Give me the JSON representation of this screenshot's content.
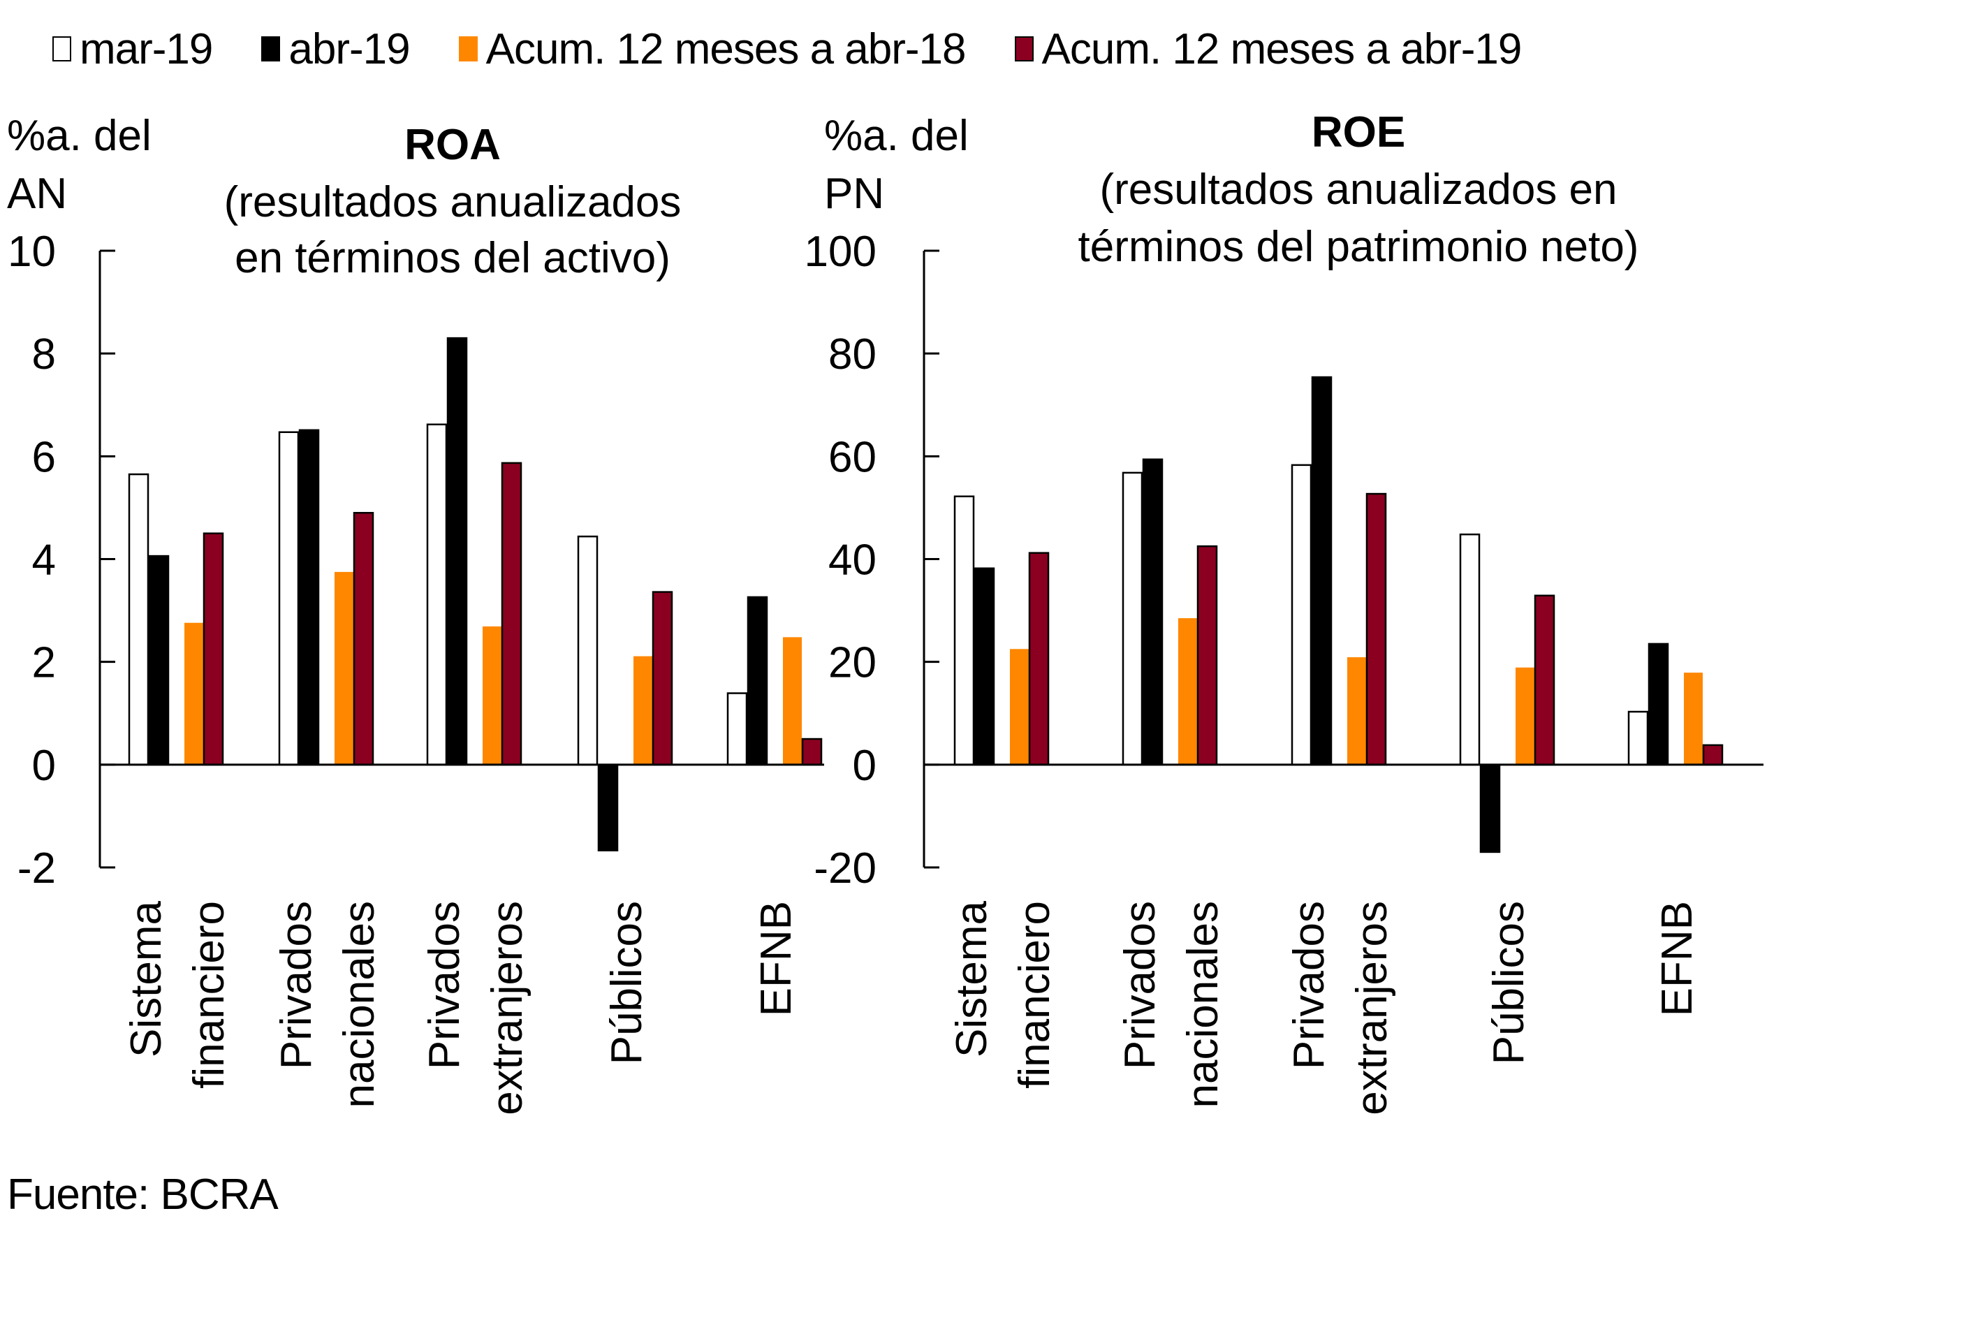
{
  "legend": [
    {
      "label": "mar-19",
      "color": "#ffffff",
      "border": "#000000"
    },
    {
      "label": "abr-19",
      "color": "#000000",
      "border": "#000000"
    },
    {
      "label": "Acum. 12 meses a abr-18",
      "color": "#ff8700",
      "border": "#ff8700"
    },
    {
      "label": "Acum. 12 meses a abr-19",
      "color": "#8b0020",
      "border": "#000000"
    }
  ],
  "source": "Fuente: BCRA",
  "chart_data": [
    {
      "type": "bar",
      "title": "ROA",
      "subtitle": [
        "(resultados anualizados",
        "en términos del activo)"
      ],
      "ylabel": [
        "%a. del",
        "AN"
      ],
      "xlabel": "",
      "ylim": [
        -2,
        10
      ],
      "yticks": [
        10,
        8,
        6,
        4,
        2,
        0,
        -2
      ],
      "grid": false,
      "legend_position": "top",
      "categories": [
        [
          "Sistema",
          "financiero"
        ],
        [
          "Privados",
          "nacionales"
        ],
        [
          "Privados",
          "extranjeros"
        ],
        [
          "Públicos"
        ],
        [
          "EFNB"
        ]
      ],
      "series": [
        {
          "name": "mar-19",
          "values": [
            5.65,
            6.47,
            6.62,
            4.44,
            1.39
          ]
        },
        {
          "name": "abr-19",
          "values": [
            4.06,
            6.51,
            8.3,
            -1.67,
            3.26
          ]
        },
        {
          "name": "Acum. 12 meses a abr-18",
          "values": [
            2.76,
            3.75,
            2.69,
            2.11,
            2.48
          ]
        },
        {
          "name": "Acum. 12 meses a abr-19",
          "values": [
            4.5,
            4.9,
            5.87,
            3.36,
            0.5
          ]
        }
      ]
    },
    {
      "type": "bar",
      "title": "ROE",
      "subtitle": [
        "(resultados anualizados en",
        "términos del patrimonio neto)"
      ],
      "ylabel": [
        "%a. del",
        "PN"
      ],
      "xlabel": "",
      "ylim": [
        -20,
        100
      ],
      "yticks": [
        100,
        80,
        60,
        40,
        20,
        0,
        -20
      ],
      "grid": false,
      "legend_position": "top",
      "categories": [
        [
          "Sistema",
          "financiero"
        ],
        [
          "Privados",
          "nacionales"
        ],
        [
          "Privados",
          "extranjeros"
        ],
        [
          "Públicos"
        ],
        [
          "EFNB"
        ]
      ],
      "series": [
        {
          "name": "mar-19",
          "values": [
            52.2,
            56.8,
            58.3,
            44.8,
            10.3
          ]
        },
        {
          "name": "abr-19",
          "values": [
            38.2,
            59.4,
            75.4,
            -17.0,
            23.5
          ]
        },
        {
          "name": "Acum. 12 meses a abr-18",
          "values": [
            22.5,
            28.5,
            20.9,
            18.9,
            17.9
          ]
        },
        {
          "name": "Acum. 12 meses a abr-19",
          "values": [
            41.2,
            42.5,
            52.7,
            32.9,
            3.8
          ]
        }
      ]
    }
  ]
}
